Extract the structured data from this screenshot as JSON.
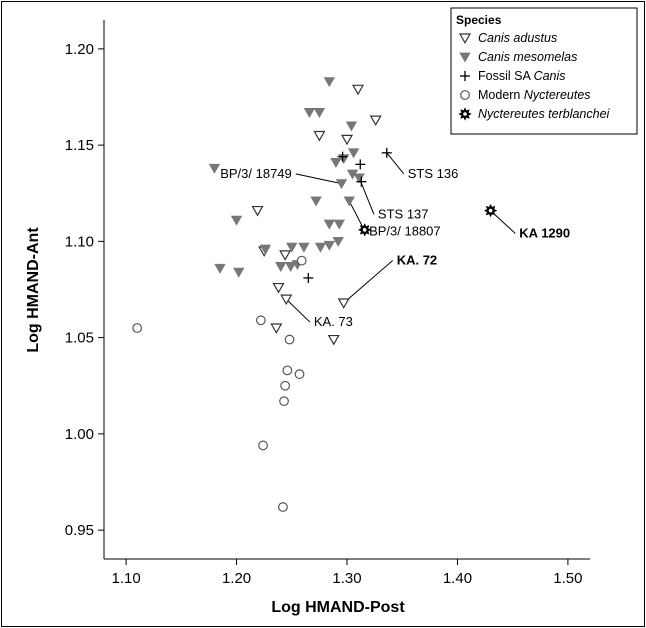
{
  "chart_data": {
    "type": "scatter",
    "title": "",
    "xlabel": "Log HMAND-Post",
    "ylabel": "Log HMAND-Ant",
    "xlim": [
      1.08,
      1.52
    ],
    "ylim": [
      0.935,
      1.215
    ],
    "xticks": [
      "1.10",
      "1.20",
      "1.30",
      "1.40",
      "1.50"
    ],
    "yticks": [
      "0.95",
      "1.00",
      "1.05",
      "1.10",
      "1.15",
      "1.20"
    ],
    "grid": false,
    "legend": {
      "title": "Species",
      "placement": "top-right",
      "entries": [
        {
          "series": "canis_adustus",
          "parts": [
            {
              "text": "Canis adustus",
              "italic": true
            }
          ]
        },
        {
          "series": "canis_mesomelas",
          "parts": [
            {
              "text": "Canis mesomelas",
              "italic": true
            }
          ]
        },
        {
          "series": "fossil_sa_canis",
          "parts": [
            {
              "text": "Fossil SA ",
              "italic": false
            },
            {
              "text": "Canis",
              "italic": true
            }
          ]
        },
        {
          "series": "modern_nyctereutes",
          "parts": [
            {
              "text": "Modern ",
              "italic": false
            },
            {
              "text": "Nyctereutes",
              "italic": true
            }
          ]
        },
        {
          "series": "nyctereutes_terblanchei",
          "parts": [
            {
              "text": "Nyctereutes terblanchei",
              "italic": true
            }
          ]
        }
      ]
    },
    "series": [
      {
        "key": "canis_adustus",
        "marker": "triangle-down-open",
        "color": "#333333",
        "points": [
          [
            1.31,
            1.179
          ],
          [
            1.326,
            1.163
          ],
          [
            1.275,
            1.155
          ],
          [
            1.3,
            1.153
          ],
          [
            1.219,
            1.116
          ],
          [
            1.225,
            1.095
          ],
          [
            1.244,
            1.093
          ],
          [
            1.238,
            1.076
          ],
          [
            1.245,
            1.07
          ],
          [
            1.297,
            1.068
          ],
          [
            1.236,
            1.055
          ],
          [
            1.288,
            1.049
          ]
        ]
      },
      {
        "key": "canis_mesomelas",
        "marker": "triangle-down-filled",
        "color": "#777777",
        "points": [
          [
            1.284,
            1.183
          ],
          [
            1.266,
            1.167
          ],
          [
            1.275,
            1.167
          ],
          [
            1.304,
            1.16
          ],
          [
            1.18,
            1.138
          ],
          [
            1.306,
            1.146
          ],
          [
            1.297,
            1.143
          ],
          [
            1.29,
            1.141
          ],
          [
            1.305,
            1.135
          ],
          [
            1.311,
            1.133
          ],
          [
            1.295,
            1.13
          ],
          [
            1.272,
            1.121
          ],
          [
            1.302,
            1.121
          ],
          [
            1.2,
            1.111
          ],
          [
            1.284,
            1.109
          ],
          [
            1.293,
            1.109
          ],
          [
            1.226,
            1.096
          ],
          [
            1.25,
            1.097
          ],
          [
            1.261,
            1.097
          ],
          [
            1.276,
            1.097
          ],
          [
            1.284,
            1.098
          ],
          [
            1.292,
            1.1
          ],
          [
            1.185,
            1.086
          ],
          [
            1.202,
            1.084
          ],
          [
            1.24,
            1.087
          ],
          [
            1.255,
            1.088
          ],
          [
            1.249,
            1.087
          ]
        ]
      },
      {
        "key": "fossil_sa_canis",
        "marker": "plus",
        "color": "#000000",
        "points": [
          [
            1.336,
            1.146
          ],
          [
            1.296,
            1.144
          ],
          [
            1.312,
            1.14
          ],
          [
            1.313,
            1.131
          ],
          [
            1.265,
            1.081
          ]
        ]
      },
      {
        "key": "modern_nyctereutes",
        "marker": "circle-open",
        "color": "#555555",
        "points": [
          [
            1.11,
            1.055
          ],
          [
            1.222,
            1.059
          ],
          [
            1.259,
            1.09
          ],
          [
            1.248,
            1.049
          ],
          [
            1.246,
            1.033
          ],
          [
            1.257,
            1.031
          ],
          [
            1.244,
            1.025
          ],
          [
            1.243,
            1.017
          ],
          [
            1.224,
            0.994
          ],
          [
            1.242,
            0.962
          ]
        ]
      },
      {
        "key": "nyctereutes_terblanchei",
        "marker": "gear",
        "color": "#000000",
        "points": [
          [
            1.316,
            1.106
          ],
          [
            1.43,
            1.116
          ]
        ]
      }
    ],
    "annotations": [
      {
        "text": "STS 136",
        "bold": false,
        "point": [
          1.336,
          1.146
        ],
        "label": [
          1.355,
          1.133
        ]
      },
      {
        "text": "BP/3/ 18749",
        "bold": false,
        "point": [
          1.295,
          1.13
        ],
        "label": [
          1.25,
          1.133
        ]
      },
      {
        "text": "STS 137",
        "bold": false,
        "point": [
          1.311,
          1.133
        ],
        "label": [
          1.328,
          1.112
        ]
      },
      {
        "text": "BP/3/ 18807",
        "bold": false,
        "point": [
          1.302,
          1.121
        ],
        "label": [
          1.32,
          1.103
        ]
      },
      {
        "text": "KA 1290",
        "bold": true,
        "point": [
          1.43,
          1.116
        ],
        "label": [
          1.456,
          1.102
        ]
      },
      {
        "text": "KA. 72",
        "bold": true,
        "point": [
          1.297,
          1.068
        ],
        "label": [
          1.345,
          1.088
        ]
      },
      {
        "text": "KA. 73",
        "bold": false,
        "point": [
          1.245,
          1.07
        ],
        "label": [
          1.27,
          1.056
        ]
      }
    ]
  }
}
